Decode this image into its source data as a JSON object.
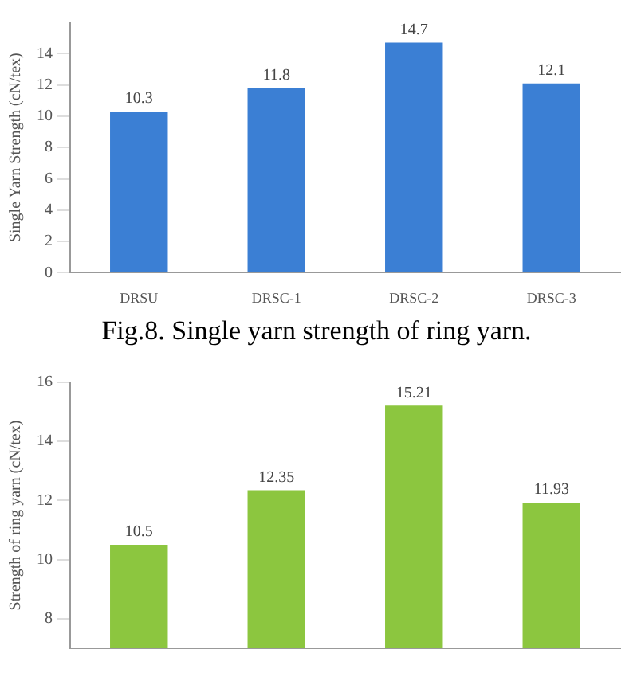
{
  "chart_data": [
    {
      "type": "bar",
      "ylabel": "Single Yarn Strength (cN/tex)",
      "categories": [
        "DRSU",
        "DRSC-1",
        "DRSC-2",
        "DRSC-3"
      ],
      "values": [
        10.3,
        11.8,
        14.7,
        12.1
      ],
      "color": "#3b7fd4",
      "ylim": [
        0,
        16
      ],
      "yticks": [
        0,
        2,
        4,
        6,
        8,
        10,
        12,
        14
      ],
      "grid": false,
      "data_labels": true,
      "annotations": [
        "Fig.8. Single yarn strength of ring yarn."
      ]
    },
    {
      "type": "bar",
      "ylabel": "Strength of ring yarn (cN/tex)",
      "categories": [
        null,
        null,
        null,
        null
      ],
      "values": [
        10.5,
        12.35,
        15.21,
        11.93
      ],
      "color": "#8cc63f",
      "ylim": [
        7,
        16
      ],
      "yticks": [
        8,
        10,
        12,
        14,
        16
      ],
      "grid": false,
      "data_labels": true,
      "tick_labels": "y"
    }
  ]
}
